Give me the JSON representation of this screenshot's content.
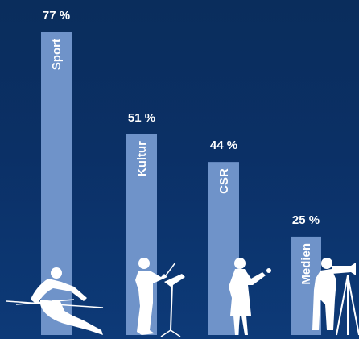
{
  "colors": {
    "background": "#0b3066",
    "bar": "#6f93c9",
    "text": "#ffffff",
    "silhouette": "#ffffff"
  },
  "chart_data": {
    "type": "bar",
    "categories": [
      "Sport",
      "Kultur",
      "CSR",
      "Medien"
    ],
    "values": [
      77,
      51,
      44,
      25
    ],
    "value_labels": [
      "77 %",
      "51 %",
      "44 %",
      "25 %"
    ],
    "unit": "%",
    "ylim": [
      0,
      100
    ],
    "grid": false,
    "legend": "none",
    "title": "",
    "xlabel": "",
    "ylabel": "",
    "icons": [
      "skier-icon",
      "conductor-icon",
      "presenter-icon",
      "cameraman-icon"
    ]
  }
}
